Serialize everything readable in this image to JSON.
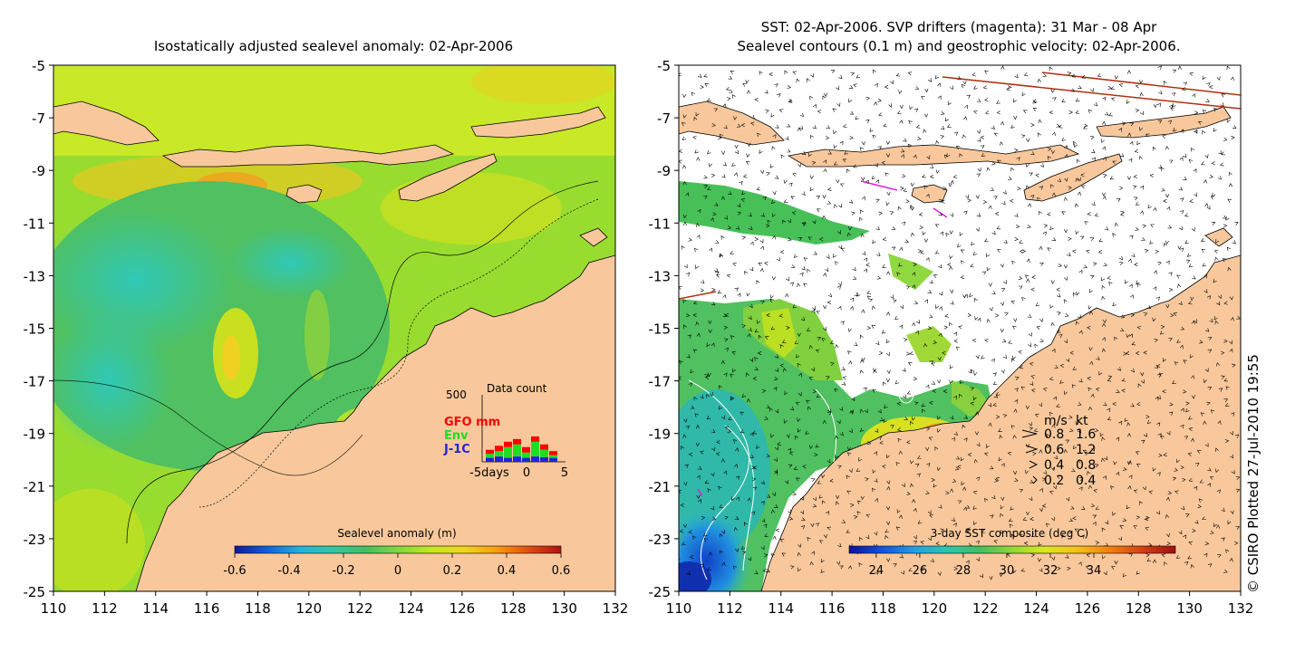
{
  "left_panel": {
    "title": "Isostatically adjusted sealevel anomaly: 02-Apr-2006",
    "y_ticks": [
      "-5",
      "-7",
      "-9",
      "-11",
      "-13",
      "-15",
      "-17",
      "-19",
      "-21",
      "-23",
      "-25"
    ],
    "x_ticks": [
      "110",
      "112",
      "114",
      "116",
      "118",
      "120",
      "122",
      "124",
      "126",
      "128",
      "130",
      "132"
    ],
    "colorbar": {
      "label": "Sealevel anomaly (m)",
      "ticks": [
        "-0.6",
        "-0.4",
        "-0.2",
        "0",
        "0.2",
        "0.4",
        "0.6"
      ]
    },
    "data_count": {
      "title": "Data count",
      "y_max": "500",
      "x_ticks": [
        "-5days",
        "0",
        "5"
      ],
      "legend": [
        {
          "label": "GFO mm",
          "color": "#ff0000"
        },
        {
          "label": "Env",
          "color": "#22dd22"
        },
        {
          "label": "J-1C",
          "color": "#2222dd"
        }
      ],
      "bars": [
        {
          "day": -5,
          "j1c": 30,
          "env": 60,
          "gfo": 90
        },
        {
          "day": -4,
          "j1c": 40,
          "env": 80,
          "gfo": 120
        },
        {
          "day": -3,
          "j1c": 30,
          "env": 110,
          "gfo": 150
        },
        {
          "day": -2,
          "j1c": 40,
          "env": 130,
          "gfo": 170
        },
        {
          "day": -1,
          "j1c": 30,
          "env": 70,
          "gfo": 110
        },
        {
          "day": 0,
          "j1c": 40,
          "env": 150,
          "gfo": 190
        },
        {
          "day": 1,
          "j1c": 35,
          "env": 90,
          "gfo": 130
        },
        {
          "day": 2,
          "j1c": 30,
          "env": 50,
          "gfo": 80
        }
      ]
    }
  },
  "right_panel": {
    "title_line1": "SST: 02-Apr-2006. SVP drifters (magenta): 31 Mar - 08 Apr",
    "title_line2": "Sealevel contours (0.1 m) and geostrophic velocity: 02-Apr-2006.",
    "y_ticks": [
      "-5",
      "-7",
      "-9",
      "-11",
      "-13",
      "-15",
      "-17",
      "-19",
      "-21",
      "-23",
      "-25"
    ],
    "x_ticks": [
      "110",
      "112",
      "114",
      "116",
      "118",
      "120",
      "122",
      "124",
      "126",
      "128",
      "130",
      "132"
    ],
    "colorbar": {
      "label": "3-day SST composite (deg C)",
      "ticks": [
        "24",
        "26",
        "28",
        "30",
        "32",
        "34"
      ]
    },
    "velocity_key": {
      "header_ms": "m/s",
      "header_kt": "kt",
      "rows": [
        {
          "ms": "0.8",
          "kt": "1.6"
        },
        {
          "ms": "0.6",
          "kt": "1.2"
        },
        {
          "ms": "0.4",
          "kt": "0.8"
        },
        {
          "ms": "0.2",
          "kt": "0.4"
        }
      ]
    }
  },
  "credit": "© CSIRO Plotted 27-Jul-2010 19:55",
  "colors": {
    "land": "#f8c89c",
    "sla_scale": [
      "#10189c",
      "#1060e0",
      "#20b4e0",
      "#30c8a8",
      "#40c060",
      "#80d840",
      "#c0e820",
      "#f0d818",
      "#f8a010",
      "#e05010",
      "#b01010"
    ],
    "sst_scale": [
      "#0c10a0",
      "#1050e0",
      "#20a0e8",
      "#28c8b0",
      "#40c060",
      "#90d838",
      "#d8e820",
      "#f8c018",
      "#f08010",
      "#d04010",
      "#a01010"
    ]
  }
}
